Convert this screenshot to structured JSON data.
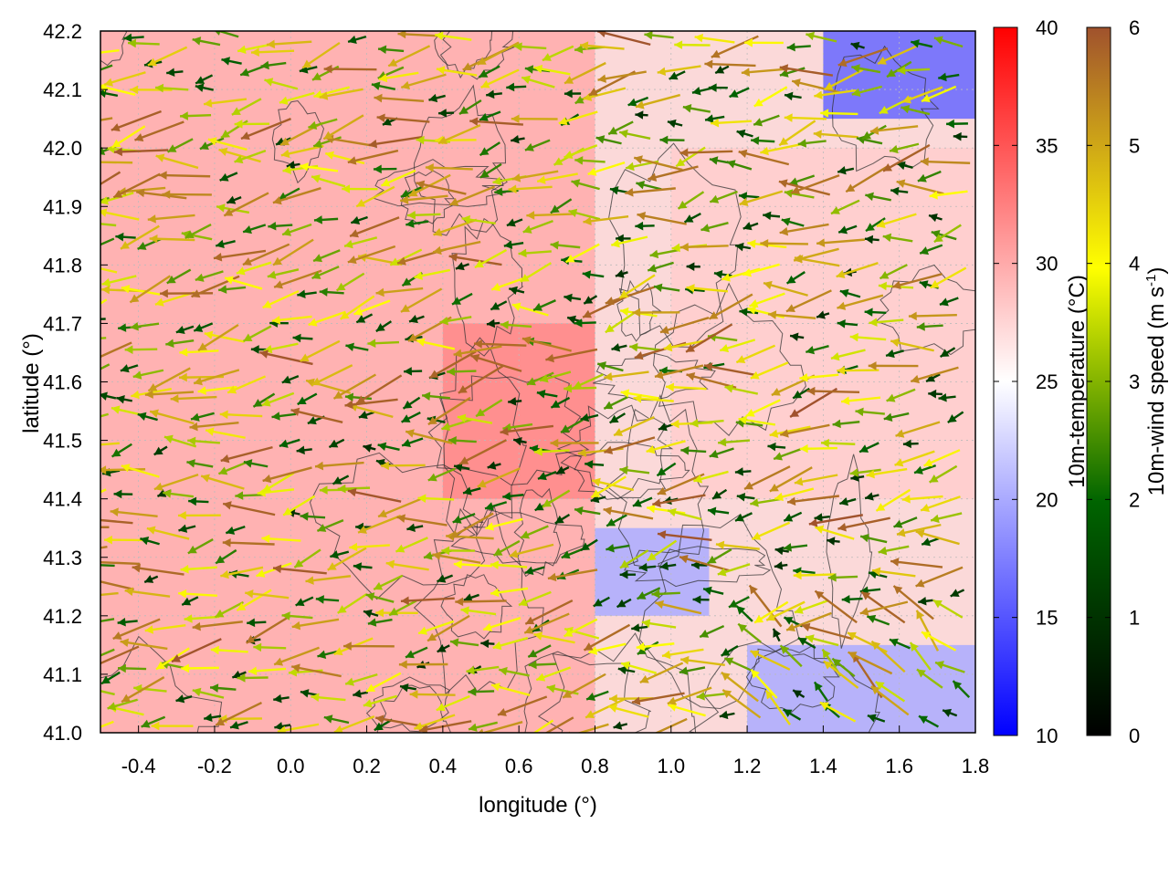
{
  "chart_data": {
    "type": "heatmap",
    "xlabel": "longitude (°)",
    "ylabel": "latitude (°)",
    "xlim": [
      -0.5,
      1.8
    ],
    "ylim": [
      41.0,
      42.2
    ],
    "xticks": [
      "-0.4",
      "-0.2",
      "0.0",
      "0.2",
      "0.4",
      "0.6",
      "0.8",
      "1.0",
      "1.2",
      "1.4",
      "1.6",
      "1.8"
    ],
    "yticks": [
      "41.0",
      "41.1",
      "41.2",
      "41.3",
      "41.4",
      "41.5",
      "41.6",
      "41.7",
      "41.8",
      "41.9",
      "42.0",
      "42.1",
      "42.2"
    ],
    "grid": true,
    "layers": [
      "temperature color map",
      "terrain contour lines",
      "wind vector arrows"
    ],
    "temperature_colorbar": {
      "label": "10m-temperature (°C)",
      "range": [
        10,
        40
      ],
      "ticks": [
        "10",
        "15",
        "20",
        "25",
        "30",
        "35",
        "40"
      ],
      "colors": [
        "#0000ff",
        "#ffffff",
        "#ff0000"
      ]
    },
    "wind_colorbar": {
      "label_main": "10m-wind speed (m s",
      "label_sup": "-1",
      "label_end": ")",
      "range": [
        0,
        6
      ],
      "ticks": [
        "0",
        "1",
        "2",
        "3",
        "4",
        "5",
        "6"
      ],
      "colors": [
        "#000000",
        "#006400",
        "#ffff00",
        "#a0522d"
      ]
    },
    "temperature_regions": [
      {
        "lon": [
          -0.5,
          0.8
        ],
        "lat": [
          41.0,
          42.2
        ],
        "temp_c": 30
      },
      {
        "lon": [
          0.4,
          0.8
        ],
        "lat": [
          41.4,
          41.7
        ],
        "temp_c": 32
      },
      {
        "lon": [
          1.0,
          1.8
        ],
        "lat": [
          41.4,
          42.0
        ],
        "temp_c": 28
      },
      {
        "lon": [
          0.8,
          1.1
        ],
        "lat": [
          41.2,
          41.35
        ],
        "temp_c": 20
      },
      {
        "lon": [
          1.2,
          1.8
        ],
        "lat": [
          41.0,
          41.15
        ],
        "temp_c": 20
      },
      {
        "lon": [
          1.4,
          1.8
        ],
        "lat": [
          42.05,
          42.2
        ],
        "temp_c": 16
      }
    ],
    "prevailing_wind": "westward",
    "wind_speed_range_ms": [
      0,
      6
    ]
  }
}
